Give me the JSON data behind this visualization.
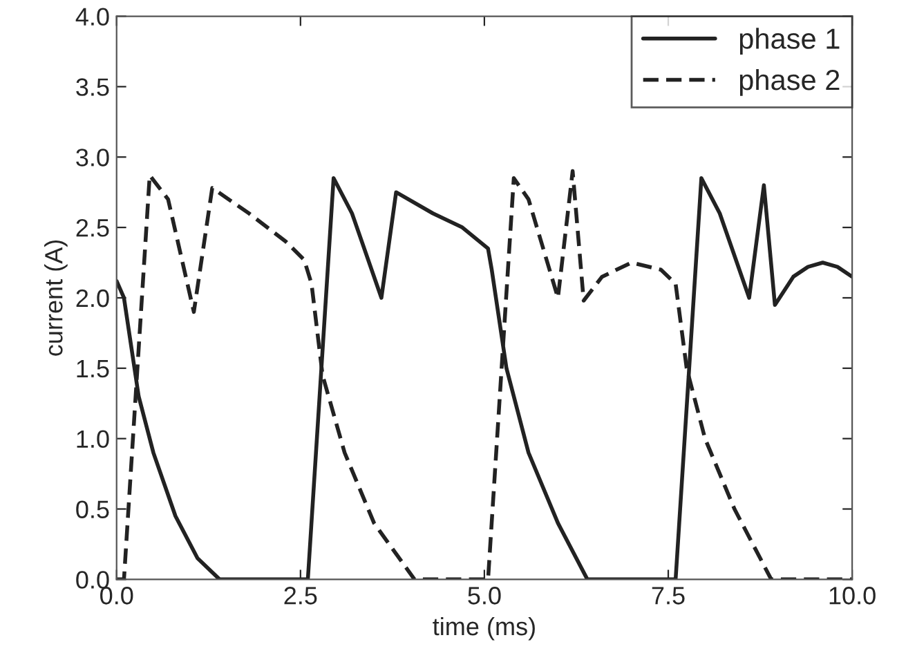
{
  "chart_data": {
    "type": "line",
    "xlabel": "time (ms)",
    "ylabel": "current (A)",
    "xlim": [
      0,
      10
    ],
    "xticks": [
      {
        "value": 0,
        "label": "0.0"
      },
      {
        "value": 2.5,
        "label": "2.5"
      },
      {
        "value": 5,
        "label": "5.0"
      },
      {
        "value": 7.5,
        "label": "7.5"
      },
      {
        "value": 10,
        "label": "10.0"
      }
    ],
    "ylim": [
      0,
      4
    ],
    "yticks": [
      {
        "value": 0,
        "label": "0.0"
      },
      {
        "value": 0.5,
        "label": "0.5"
      },
      {
        "value": 1,
        "label": "1.0"
      },
      {
        "value": 1.5,
        "label": "1.5"
      },
      {
        "value": 2,
        "label": "2.0"
      },
      {
        "value": 2.5,
        "label": "2.5"
      },
      {
        "value": 3,
        "label": "3.0"
      },
      {
        "value": 3.5,
        "label": "3.5"
      },
      {
        "value": 4,
        "label": "4.0"
      }
    ],
    "legend": "top right",
    "grid": false,
    "marker": "none",
    "series": [
      {
        "name": "phase 1",
        "color": "#222222",
        "line_style": "solid",
        "x": [
          0,
          0.1,
          0.3,
          0.5,
          0.8,
          1.1,
          1.4,
          2.6,
          2.95,
          3.2,
          3.6,
          3.8,
          4.3,
          4.7,
          5.05,
          5.1,
          5.3,
          5.6,
          6.0,
          6.4,
          7.6,
          7.95,
          8.2,
          8.6,
          8.8,
          8.95,
          9.2,
          9.4,
          9.6,
          9.8,
          10
        ],
        "values": [
          2.12,
          2.0,
          1.3,
          0.9,
          0.45,
          0.15,
          0,
          0,
          2.85,
          2.6,
          2.0,
          2.75,
          2.6,
          2.5,
          2.35,
          2.2,
          1.5,
          0.9,
          0.4,
          0,
          0,
          2.85,
          2.6,
          2.0,
          2.8,
          1.95,
          2.15,
          2.22,
          2.25,
          2.22,
          2.15
        ]
      },
      {
        "name": "phase 2",
        "color": "#222222",
        "line_style": "dashed",
        "x": [
          0,
          0.1,
          0.45,
          0.7,
          1.05,
          1.3,
          1.8,
          2.3,
          2.55,
          2.65,
          2.8,
          3.1,
          3.5,
          4.05,
          5.05,
          5.4,
          5.6,
          6.0,
          6.2,
          6.35,
          6.6,
          7.0,
          7.4,
          7.6,
          7.75,
          8.0,
          8.4,
          8.9,
          10
        ],
        "values": [
          0,
          0,
          2.87,
          2.7,
          1.9,
          2.78,
          2.6,
          2.4,
          2.27,
          2.1,
          1.45,
          0.9,
          0.4,
          0,
          0,
          2.85,
          2.7,
          2.0,
          2.9,
          1.98,
          2.15,
          2.25,
          2.2,
          2.1,
          1.5,
          1.0,
          0.5,
          0,
          0
        ]
      }
    ]
  }
}
